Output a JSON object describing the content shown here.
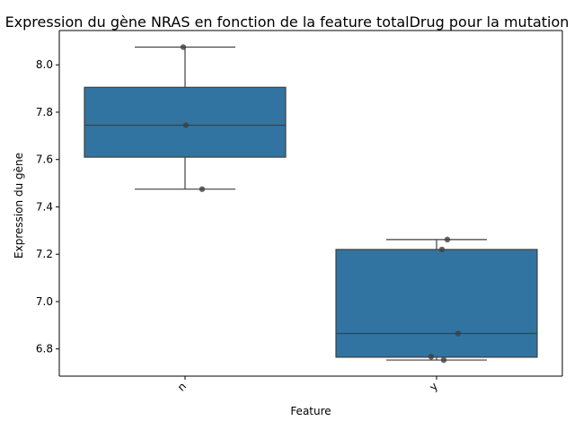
{
  "chart_data": {
    "type": "box",
    "title": "Expression du gène NRAS en fonction de la feature totalDrug pour la mutation",
    "xlabel": "Feature",
    "ylabel": "Expression du gène",
    "categories": [
      "n",
      "y"
    ],
    "ylim": [
      6.685,
      8.145
    ],
    "yticks": [
      "6.8",
      "7.0",
      "7.2",
      "7.4",
      "7.6",
      "7.8",
      "8.0"
    ],
    "grid": false,
    "boxes": [
      {
        "category": "n",
        "whisker_low": 7.475,
        "q1": 7.61,
        "median": 7.745,
        "q3": 7.905,
        "whisker_high": 8.075
      },
      {
        "category": "y",
        "whisker_low": 6.753,
        "q1": 6.765,
        "median": 6.865,
        "q3": 7.22,
        "whisker_high": 7.262
      }
    ],
    "points": [
      {
        "category": "n",
        "values": [
          8.075,
          7.745,
          7.475
        ]
      },
      {
        "category": "y",
        "values": [
          7.262,
          7.22,
          6.865,
          6.767,
          6.753
        ]
      }
    ],
    "colors": {
      "box": "#3274a1",
      "edge": "#3f3f3f",
      "point": "#3f3f3f"
    }
  }
}
